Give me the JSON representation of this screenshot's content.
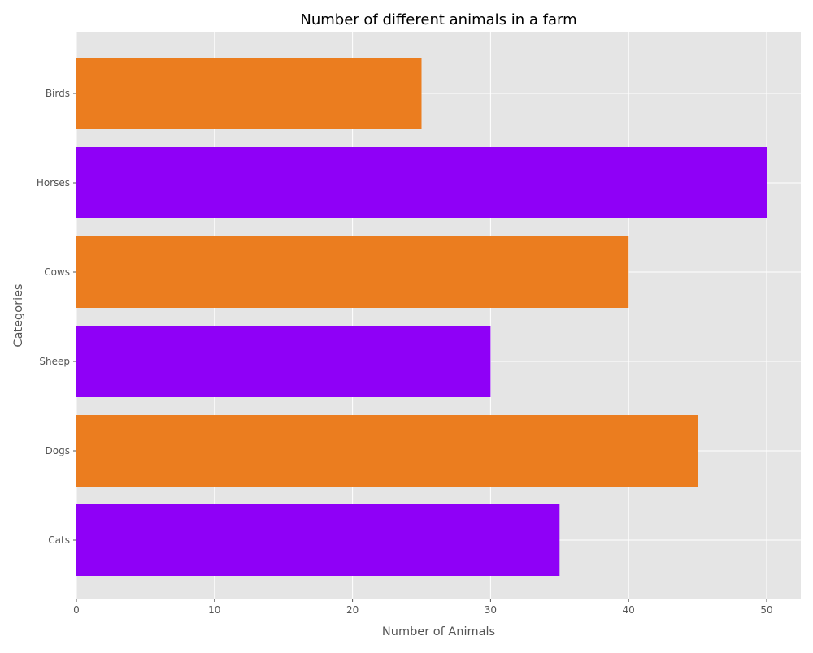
{
  "chart_data": {
    "type": "bar",
    "orientation": "horizontal",
    "title": "Number of different animals in a farm",
    "xlabel": "Number of Animals",
    "ylabel": "Categories",
    "categories": [
      "Cats",
      "Dogs",
      "Sheep",
      "Cows",
      "Horses",
      "Birds"
    ],
    "values": [
      35,
      45,
      30,
      40,
      50,
      25
    ],
    "bar_colors": [
      "#8f00f7",
      "#eb7d1f",
      "#8f00f7",
      "#eb7d1f",
      "#8f00f7",
      "#eb7d1f"
    ],
    "xlim": [
      0,
      52.5
    ],
    "xticks": [
      0,
      10,
      20,
      30,
      40,
      50
    ],
    "grid": true,
    "legend": "none"
  },
  "colors": {
    "plot_background": "#e5e5e5",
    "grid": "#ffffff",
    "tick_text": "#555555"
  }
}
